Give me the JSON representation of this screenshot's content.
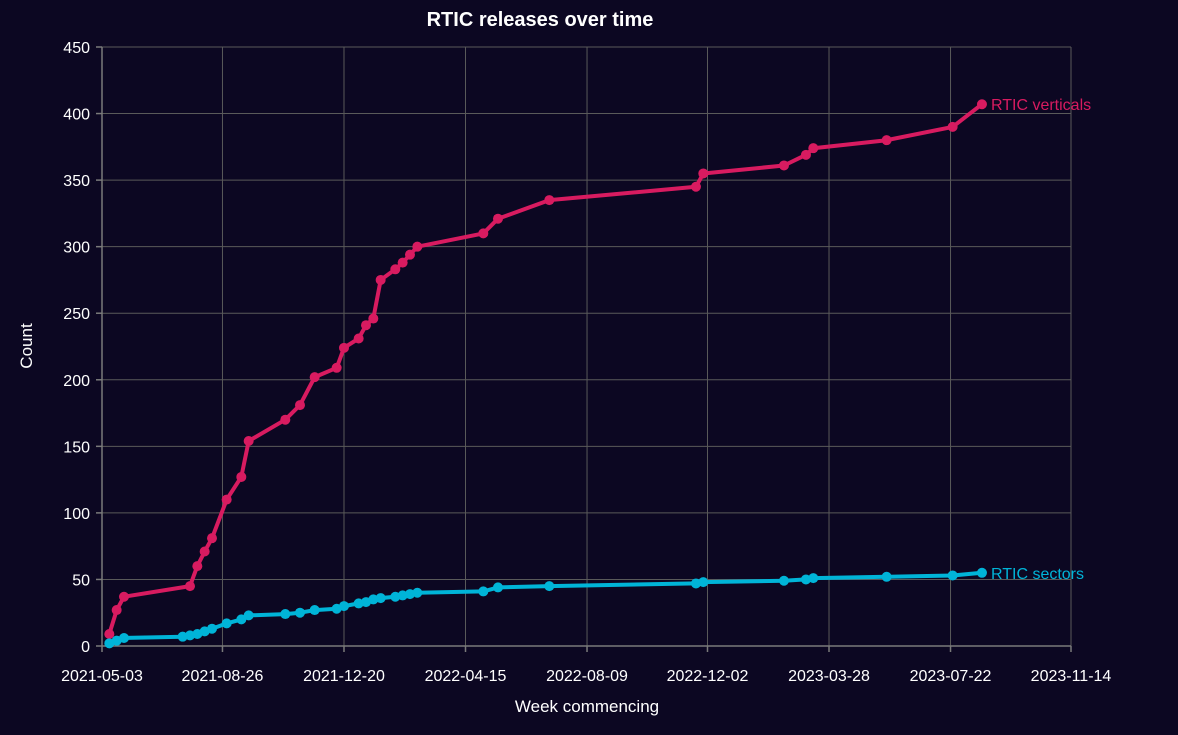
{
  "chart_data": {
    "type": "line",
    "title": "RTIC releases over time",
    "xlabel": "Week commencing",
    "ylabel": "Count",
    "xlim": [
      "2021-05-03",
      "2023-11-14"
    ],
    "ylim": [
      0,
      450
    ],
    "x_ticks": [
      "2021-05-03",
      "2021-08-26",
      "2021-12-20",
      "2022-04-15",
      "2022-08-09",
      "2022-12-02",
      "2023-03-28",
      "2023-07-22",
      "2023-11-14"
    ],
    "y_ticks": [
      0,
      50,
      100,
      150,
      200,
      250,
      300,
      350,
      400,
      450
    ],
    "grid": true,
    "legend": "end-of-line labels",
    "series": [
      {
        "name": "RTIC verticals",
        "color": "#d81b60",
        "points": [
          [
            "2021-05-10",
            9
          ],
          [
            "2021-05-17",
            27
          ],
          [
            "2021-05-24",
            37
          ],
          [
            "2021-07-26",
            45
          ],
          [
            "2021-08-02",
            60
          ],
          [
            "2021-08-09",
            71
          ],
          [
            "2021-08-16",
            81
          ],
          [
            "2021-08-30",
            110
          ],
          [
            "2021-09-13",
            127
          ],
          [
            "2021-09-20",
            154
          ],
          [
            "2021-10-25",
            170
          ],
          [
            "2021-11-08",
            181
          ],
          [
            "2021-11-22",
            202
          ],
          [
            "2021-12-13",
            209
          ],
          [
            "2021-12-20",
            224
          ],
          [
            "2022-01-03",
            231
          ],
          [
            "2022-01-10",
            241
          ],
          [
            "2022-01-17",
            246
          ],
          [
            "2022-01-24",
            275
          ],
          [
            "2022-02-07",
            283
          ],
          [
            "2022-02-14",
            288
          ],
          [
            "2022-02-21",
            294
          ],
          [
            "2022-02-28",
            300
          ],
          [
            "2022-05-02",
            310
          ],
          [
            "2022-05-16",
            321
          ],
          [
            "2022-07-04",
            335
          ],
          [
            "2022-11-21",
            345
          ],
          [
            "2022-11-28",
            355
          ],
          [
            "2023-02-13",
            361
          ],
          [
            "2023-03-06",
            369
          ],
          [
            "2023-03-13",
            374
          ],
          [
            "2023-05-22",
            380
          ],
          [
            "2023-07-24",
            390
          ],
          [
            "2023-08-21",
            407
          ]
        ]
      },
      {
        "name": "RTIC sectors",
        "color": "#00b4d8",
        "points": [
          [
            "2021-05-10",
            2
          ],
          [
            "2021-05-17",
            4
          ],
          [
            "2021-05-24",
            6
          ],
          [
            "2021-07-19",
            7
          ],
          [
            "2021-07-26",
            8
          ],
          [
            "2021-08-02",
            9
          ],
          [
            "2021-08-09",
            11
          ],
          [
            "2021-08-16",
            13
          ],
          [
            "2021-08-30",
            17
          ],
          [
            "2021-09-13",
            20
          ],
          [
            "2021-09-20",
            23
          ],
          [
            "2021-10-25",
            24
          ],
          [
            "2021-11-08",
            25
          ],
          [
            "2021-11-22",
            27
          ],
          [
            "2021-12-13",
            28
          ],
          [
            "2021-12-20",
            30
          ],
          [
            "2022-01-03",
            32
          ],
          [
            "2022-01-10",
            33
          ],
          [
            "2022-01-17",
            35
          ],
          [
            "2022-01-24",
            36
          ],
          [
            "2022-02-07",
            37
          ],
          [
            "2022-02-14",
            38
          ],
          [
            "2022-02-21",
            39
          ],
          [
            "2022-02-28",
            40
          ],
          [
            "2022-05-02",
            41
          ],
          [
            "2022-05-16",
            44
          ],
          [
            "2022-07-04",
            45
          ],
          [
            "2022-11-21",
            47
          ],
          [
            "2022-11-28",
            48
          ],
          [
            "2023-02-13",
            49
          ],
          [
            "2023-03-06",
            50
          ],
          [
            "2023-03-13",
            51
          ],
          [
            "2023-05-22",
            52
          ],
          [
            "2023-07-24",
            53
          ],
          [
            "2023-08-21",
            55
          ]
        ]
      }
    ]
  }
}
